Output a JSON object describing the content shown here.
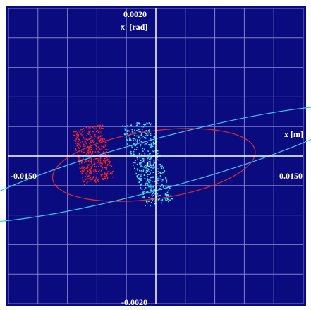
{
  "chart_data": {
    "type": "scatter",
    "xlabel": "x [m]",
    "ylabel": "x' [rad]",
    "xlim": [
      -0.015,
      0.015
    ],
    "ylim": [
      -0.002,
      0.002
    ],
    "tick_labels": {
      "x_min": "-0.0150",
      "x_max": "0.0150",
      "y_max": "0.0020",
      "y_min": "-0.0020"
    },
    "origin_label": "0",
    "grid": true,
    "colors": {
      "background": "#0b0b80",
      "grid": "#8a8ad6",
      "axes": "#ffffff",
      "red_particles": "#ff2020",
      "red_ellipse": "#e02a2a",
      "cyan_particles": "#40e8ff",
      "cyan_ellipse": "#38c8f0"
    },
    "series": [
      {
        "kind": "particles",
        "color": "red",
        "shape": "parallelogram",
        "count": 450,
        "corners": [
          [
            -0.0086,
            0.00034
          ],
          [
            -0.0074,
            -0.0004
          ],
          [
            -0.0043,
            -0.00028
          ],
          [
            -0.0055,
            0.00046
          ]
        ]
      },
      {
        "kind": "particles",
        "color": "cyan",
        "shape": "parallelogram",
        "count": 480,
        "corners": [
          [
            -0.0035,
            0.00042
          ],
          [
            -0.0011,
            -0.00068
          ],
          [
            0.0018,
            -0.00058
          ],
          [
            -0.0006,
            0.0005
          ]
        ]
      },
      {
        "kind": "ellipse",
        "color": "red",
        "center": [
          -0.0002,
          -0.00012
        ],
        "semi_axis_x": 0.0104,
        "semi_axis_y": 0.00046,
        "tilt": 0.14
      },
      {
        "kind": "ellipse",
        "color": "cyan",
        "center": [
          0.0002,
          -0.00011
        ],
        "semi_axis_x": 0.0205,
        "semi_axis_y": 0.00034,
        "tilt": 0.27
      }
    ]
  }
}
